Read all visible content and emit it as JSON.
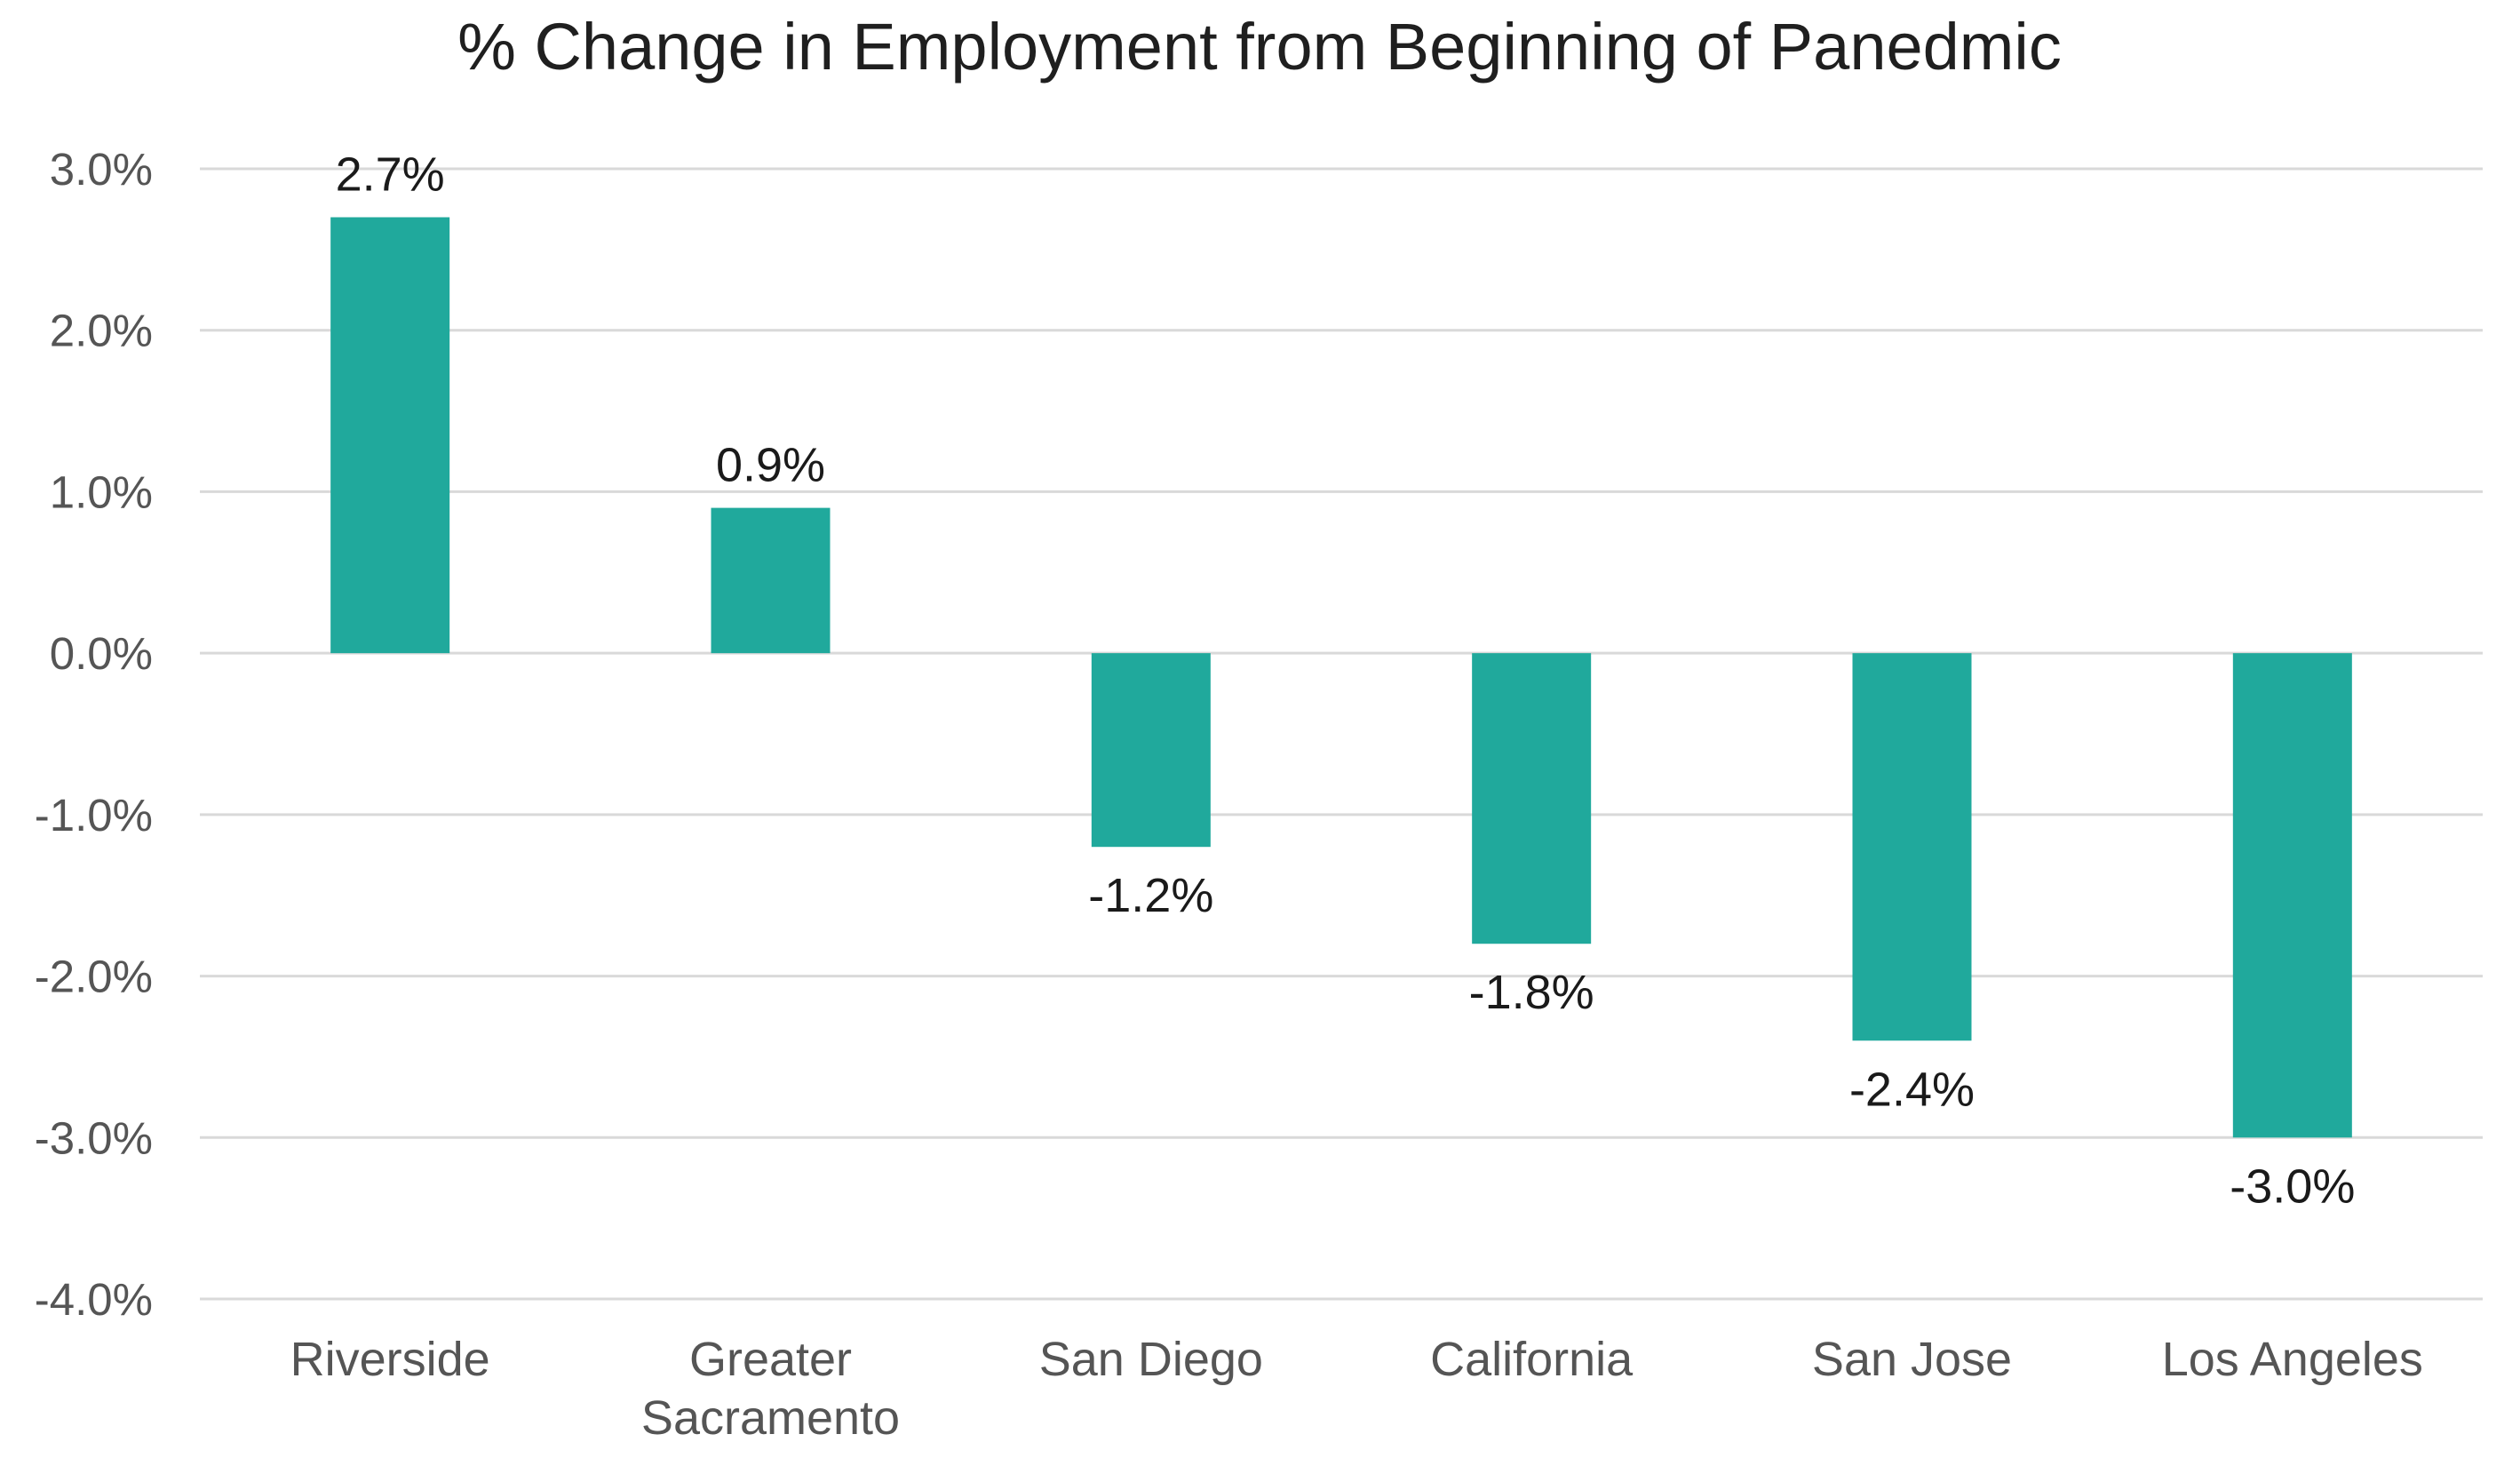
{
  "chart_data": {
    "type": "bar",
    "title": "% Change in Employment from Beginning of Panedmic",
    "xlabel": "",
    "ylabel": "",
    "categories": [
      [
        "Riverside"
      ],
      [
        "Greater",
        "Sacramento"
      ],
      [
        "San Diego"
      ],
      [
        "California"
      ],
      [
        "San Jose"
      ],
      [
        "Los Angeles"
      ]
    ],
    "values": [
      2.7,
      0.9,
      -1.2,
      -1.8,
      -2.4,
      -3.0
    ],
    "data_labels": [
      "2.7%",
      "0.9%",
      "-1.2%",
      "-1.8%",
      "-2.4%",
      "-3.0%"
    ],
    "ylim": [
      -4.0,
      3.0
    ],
    "yticks": [
      3.0,
      2.0,
      1.0,
      0.0,
      -1.0,
      -2.0,
      -3.0,
      -4.0
    ],
    "ytick_labels": [
      "3.0%",
      "2.0%",
      "1.0%",
      "0.0%",
      "-1.0%",
      "-2.0%",
      "-3.0%",
      "-4.0%"
    ],
    "grid": true,
    "legend": "none",
    "bar_color": "#20a99c"
  }
}
